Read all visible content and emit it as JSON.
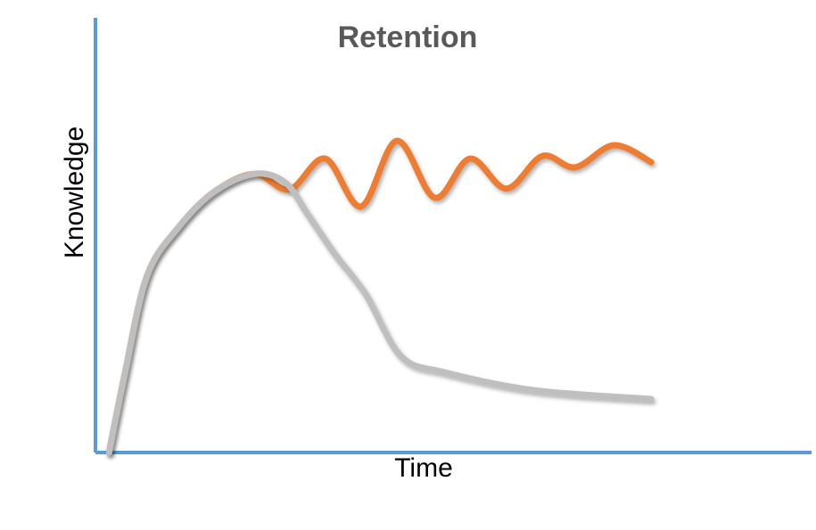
{
  "chart_data": {
    "type": "line",
    "title": "Retention",
    "x_label": "Time",
    "y_label": "Knowledge",
    "xlim": [
      0,
      100
    ],
    "ylim": [
      0,
      100
    ],
    "grid": false,
    "axis_color": "#5b9bd5",
    "series": [
      {
        "color": "#ed7d31",
        "x": [
          1.9,
          4.1,
          7.2,
          11.6,
          16.6,
          22.2,
          27.1,
          32.1,
          37.1,
          42.1,
          47.4,
          52.3,
          57.4,
          62.4,
          67.0,
          72.4,
          77.6
        ],
        "values": [
          0,
          18.0,
          40.6,
          51.8,
          60.0,
          64.1,
          60.5,
          67.6,
          56.6,
          71.7,
          58.6,
          67.6,
          60.7,
          68.2,
          65.6,
          70.7,
          66.8
        ]
      },
      {
        "color": "#bfbfbf",
        "x": [
          1.9,
          4.1,
          7.2,
          11.6,
          16.6,
          22.2,
          26.5,
          29.6,
          33.4,
          37.7,
          42.7,
          48.9,
          61.4,
          77.6
        ],
        "values": [
          0,
          18.0,
          40.6,
          51.8,
          60.0,
          64.1,
          62.1,
          54.9,
          45.7,
          36.5,
          22.1,
          18.4,
          14.3,
          12.3
        ]
      }
    ]
  }
}
